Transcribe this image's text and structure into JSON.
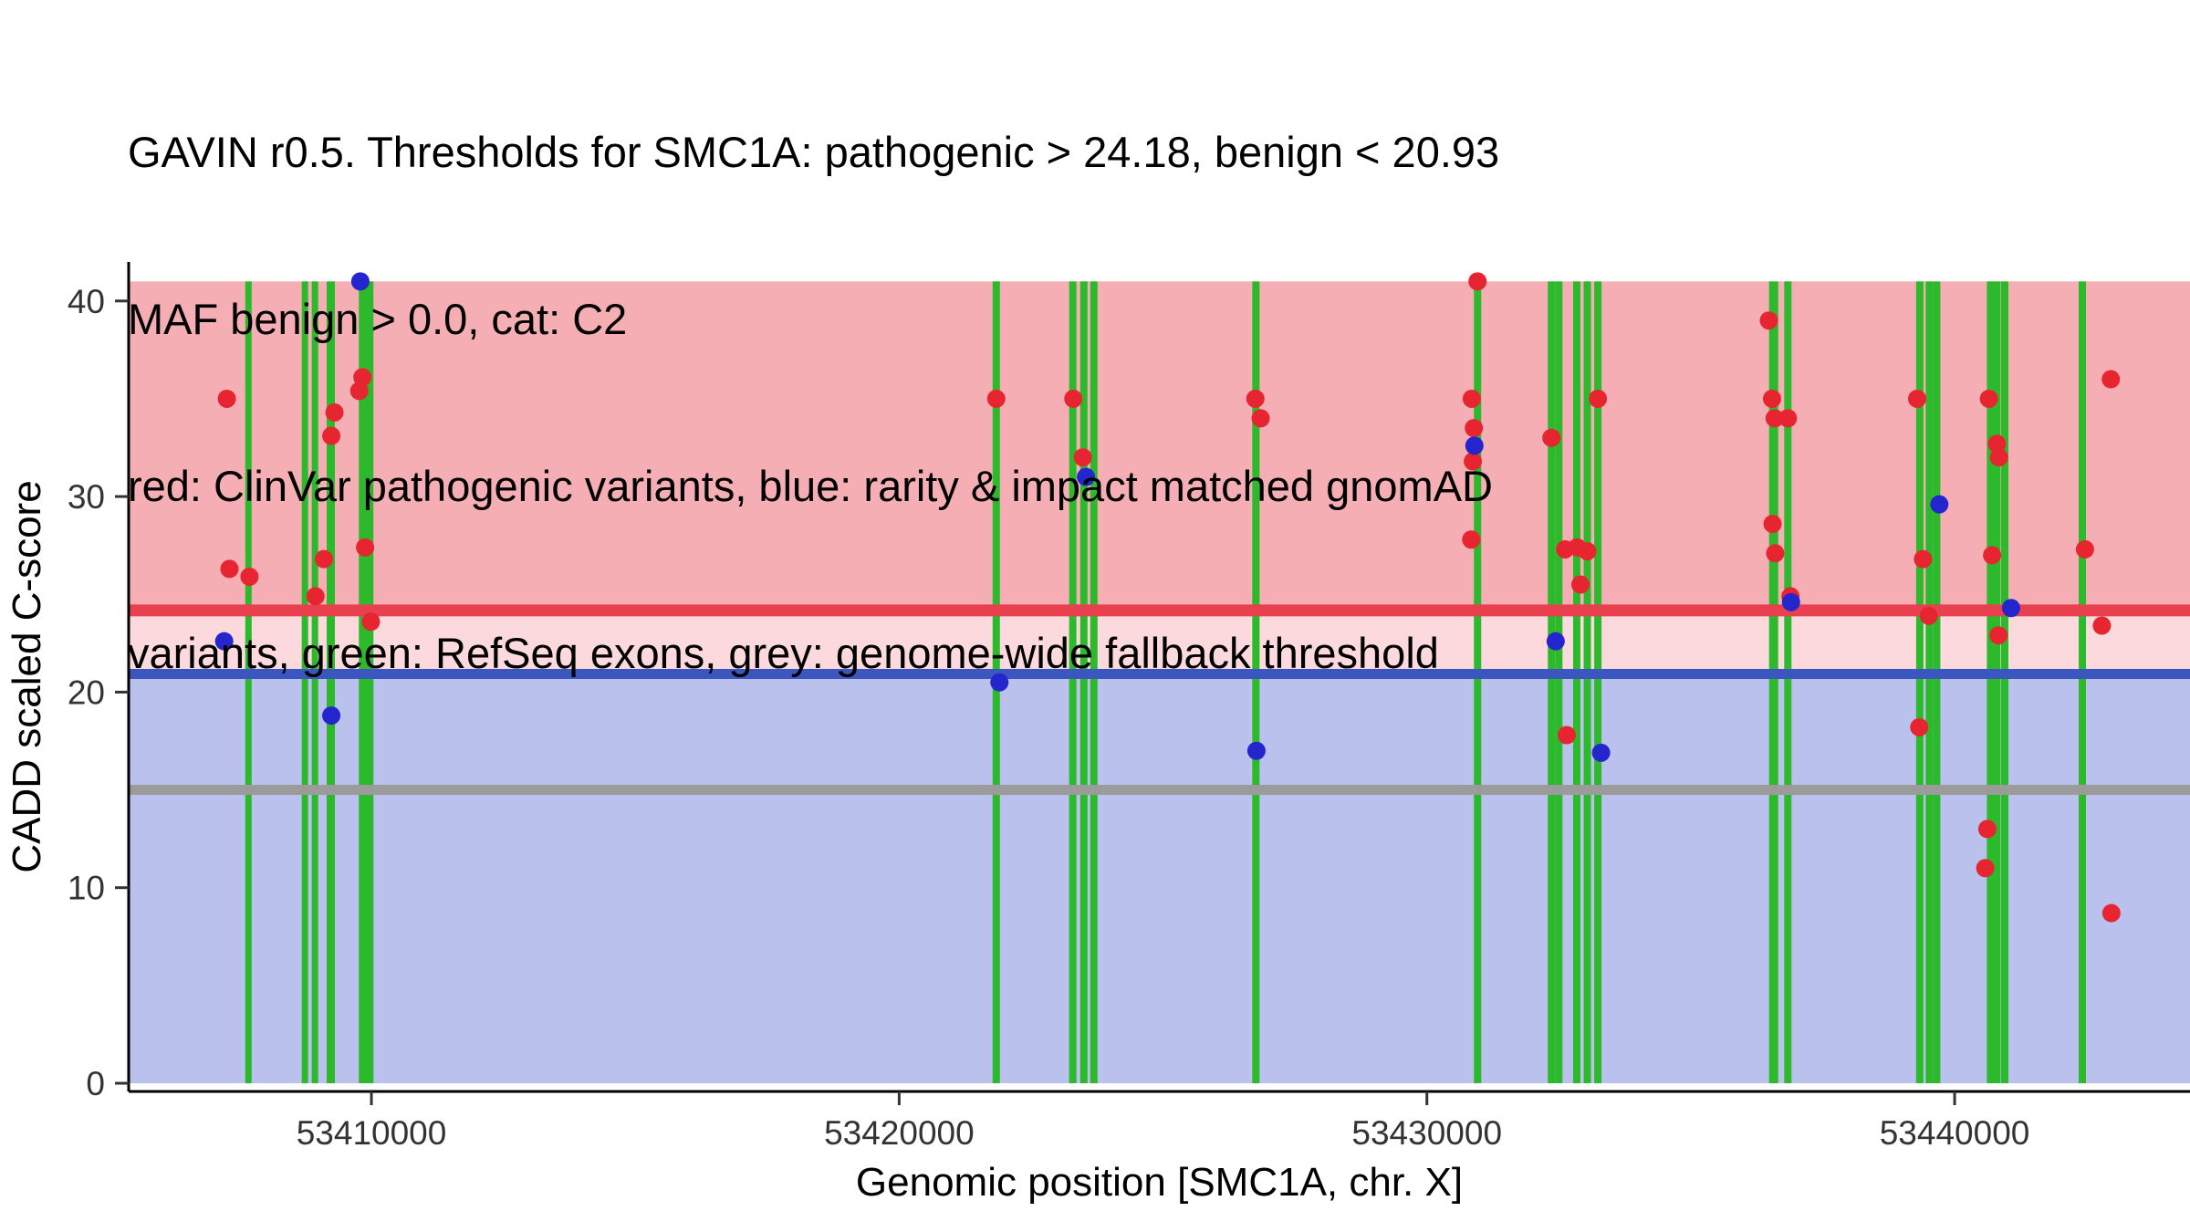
{
  "title_lines": [
    "GAVIN r0.5. Thresholds for SMC1A: pathogenic > 24.18, benign < 20.93",
    "MAF benign > 0.0, cat: C2",
    "red: ClinVar pathogenic variants, blue: rarity & impact matched gnomAD",
    "variants, green: RefSeq exons, grey: genome-wide fallback threshold"
  ],
  "chart_data": {
    "type": "scatter",
    "title": "GAVIN r0.5. Thresholds for SMC1A",
    "xlabel": "Genomic position [SMC1A, chr. X]",
    "ylabel": "CADD scaled C-score",
    "x_domain": [
      53405400,
      53444460
    ],
    "y_domain": [
      0,
      42
    ],
    "x_ticks": [
      53410000,
      53420000,
      53430000,
      53440000
    ],
    "x_tick_labels": [
      "53410000",
      "53420000",
      "53430000",
      "53440000"
    ],
    "y_ticks": [
      0,
      10,
      20,
      30,
      40
    ],
    "grid": false,
    "legend_position": "none (legend described in title text)",
    "regions": [
      {
        "name": "pathogenic-zone",
        "from": 24.18,
        "to": 41,
        "color": "#f5afb4"
      },
      {
        "name": "intermediate-zone",
        "from": 20.93,
        "to": 24.18,
        "color": "#fbd9dc"
      },
      {
        "name": "benign-zone",
        "from": 0,
        "to": 20.93,
        "color": "#b9c1ec"
      }
    ],
    "thresholds": [
      {
        "name": "pathogenic-threshold",
        "label": "pathogenic > 24.18",
        "value": 24.18,
        "color": "#e8404f",
        "width": 13
      },
      {
        "name": "benign-threshold",
        "label": "benign < 20.93",
        "value": 20.93,
        "color": "#3c56c0",
        "width": 11
      },
      {
        "name": "fallback-threshold",
        "label": "genome-wide fallback threshold",
        "value": 15,
        "color": "#9b9b9b",
        "width": 11
      }
    ],
    "exons": {
      "label": "RefSeq exons",
      "color": "#2cb92c",
      "default_width": 8,
      "top": 41,
      "positions": [
        [
          53407670,
          7
        ],
        [
          53408740,
          7
        ],
        [
          53408930,
          7
        ],
        [
          53409230,
          9
        ],
        [
          53409900,
          16
        ],
        [
          53421840,
          8
        ],
        [
          53423290,
          8
        ],
        [
          53423500,
          8
        ],
        [
          53423690,
          8
        ],
        [
          53426760,
          8
        ],
        [
          53430960,
          8
        ],
        [
          53432360,
          8
        ],
        [
          53432500,
          8
        ],
        [
          53432840,
          8
        ],
        [
          53433040,
          8
        ],
        [
          53433240,
          8
        ],
        [
          53436570,
          10
        ],
        [
          53436840,
          8
        ],
        [
          53439340,
          8
        ],
        [
          53439520,
          8
        ],
        [
          53439660,
          8
        ],
        [
          53440680,
          8
        ],
        [
          53440800,
          8
        ],
        [
          53440950,
          8
        ],
        [
          53442420,
          8
        ]
      ]
    },
    "series": [
      {
        "name": "ClinVar pathogenic variants",
        "color": "#e62530",
        "point_radius": 10,
        "points": [
          [
            53407260,
            35.0
          ],
          [
            53407310,
            26.3
          ],
          [
            53407690,
            25.9
          ],
          [
            53408940,
            24.9
          ],
          [
            53409100,
            26.8
          ],
          [
            53409240,
            33.1
          ],
          [
            53409300,
            34.3
          ],
          [
            53409770,
            35.4
          ],
          [
            53409830,
            36.1
          ],
          [
            53409880,
            27.4
          ],
          [
            53409990,
            23.6
          ],
          [
            53421840,
            35.0
          ],
          [
            53423300,
            35.0
          ],
          [
            53423480,
            32.0
          ],
          [
            53426750,
            35.0
          ],
          [
            53426850,
            34.0
          ],
          [
            53430850,
            35.0
          ],
          [
            53430890,
            33.5
          ],
          [
            53430870,
            31.8
          ],
          [
            53430840,
            27.8
          ],
          [
            53430960,
            41.0
          ],
          [
            53432360,
            33.0
          ],
          [
            53432620,
            27.3
          ],
          [
            53432650,
            17.8
          ],
          [
            53432850,
            27.4
          ],
          [
            53432910,
            25.5
          ],
          [
            53433040,
            27.2
          ],
          [
            53433240,
            35.0
          ],
          [
            53436480,
            39.0
          ],
          [
            53436540,
            35.0
          ],
          [
            53436590,
            34.0
          ],
          [
            53436840,
            34.0
          ],
          [
            53436550,
            28.6
          ],
          [
            53436600,
            27.1
          ],
          [
            53436890,
            24.9
          ],
          [
            53439290,
            35.0
          ],
          [
            53439400,
            26.8
          ],
          [
            53439510,
            23.9
          ],
          [
            53439330,
            18.2
          ],
          [
            53440650,
            35.0
          ],
          [
            53440800,
            32.7
          ],
          [
            53440840,
            32.0
          ],
          [
            53440710,
            27.0
          ],
          [
            53440830,
            22.9
          ],
          [
            53440620,
            13.0
          ],
          [
            53440580,
            11.0
          ],
          [
            53442960,
            36.0
          ],
          [
            53442470,
            27.3
          ],
          [
            53442790,
            23.4
          ],
          [
            53442970,
            8.7
          ]
        ]
      },
      {
        "name": "rarity & impact matched gnomAD variants",
        "color": "#2525cd",
        "point_radius": 10,
        "points": [
          [
            53407210,
            22.6
          ],
          [
            53409240,
            18.8
          ],
          [
            53409790,
            41.0
          ],
          [
            53421900,
            20.5
          ],
          [
            53423540,
            31.0
          ],
          [
            53426770,
            17.0
          ],
          [
            53430900,
            32.6
          ],
          [
            53432440,
            22.6
          ],
          [
            53433300,
            16.9
          ],
          [
            53436900,
            24.6
          ],
          [
            53439710,
            29.6
          ],
          [
            53441070,
            24.3
          ]
        ]
      }
    ],
    "axis": {
      "line_color": "#000000",
      "tick_color": "#333333",
      "tick_label_size": 37,
      "axis_label_size": 44
    }
  }
}
